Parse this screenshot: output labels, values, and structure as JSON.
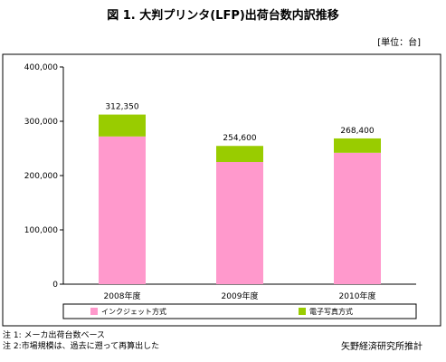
{
  "chart_data": {
    "type": "bar",
    "stacked": true,
    "title": "図 1. 大判プリンタ(LFP)出荷台数内訳推移",
    "unit_label": "[単位：台]",
    "categories": [
      "2008年度",
      "2009年度",
      "2010年度"
    ],
    "series": [
      {
        "name": "インクジェット方式",
        "values": [
          272000,
          225000,
          242000
        ],
        "color": "#ff99cc"
      },
      {
        "name": "電子写真方式",
        "values": [
          40350,
          29600,
          26400
        ],
        "color": "#99cc00"
      }
    ],
    "totals": [
      312350,
      254600,
      268400
    ],
    "total_labels": [
      "312,350",
      "254,600",
      "268,400"
    ],
    "ylim": [
      0,
      400000
    ],
    "yticks": [
      0,
      100000,
      200000,
      300000,
      400000
    ],
    "ytick_labels": [
      "0",
      "100,000",
      "200,000",
      "300,000",
      "400,000"
    ],
    "grid": false,
    "legend_position": "bottom"
  },
  "notes": [
    "注 1: メーカ出荷台数ベース",
    "注 2:市場規模は、過去に遡って再算出した"
  ],
  "source": "矢野経済研究所推計"
}
